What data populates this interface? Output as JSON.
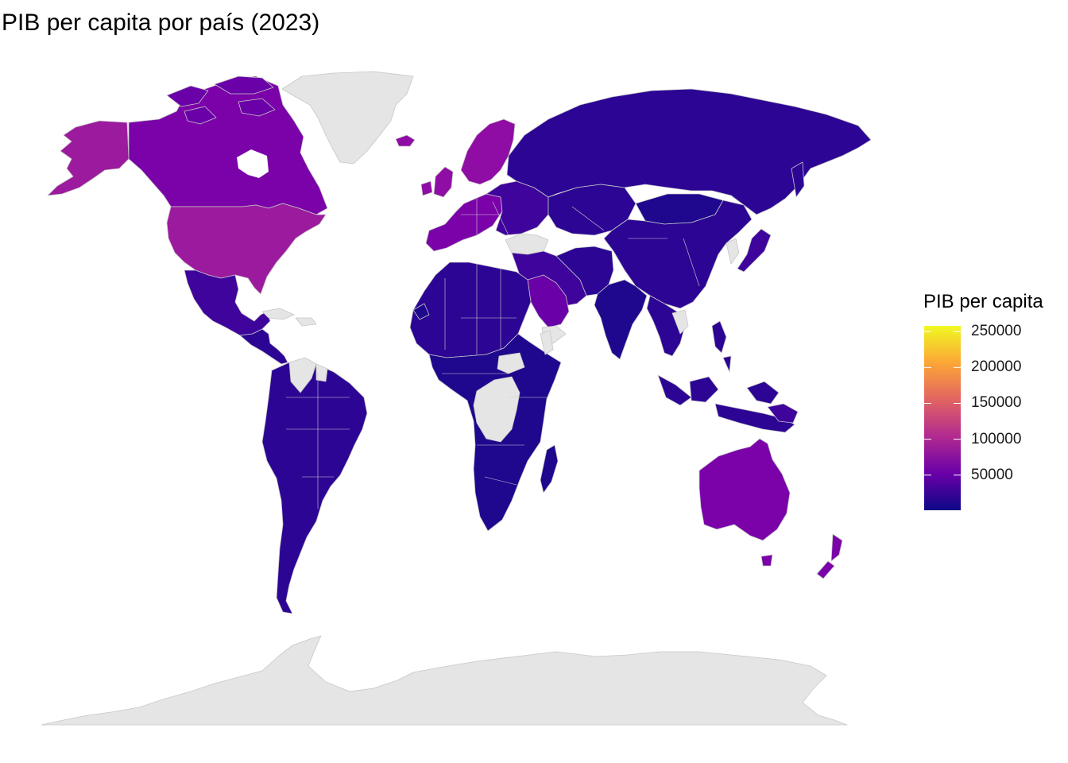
{
  "title": "PIB per capita por país (2023)",
  "legend": {
    "title": "PIB per capita",
    "min": 1000,
    "max": 258000,
    "ticks": [
      {
        "label": "250000",
        "value": 250000
      },
      {
        "label": "200000",
        "value": 200000
      },
      {
        "label": "150000",
        "value": 150000
      },
      {
        "label": "100000",
        "value": 100000
      },
      {
        "label": "50000",
        "value": 50000
      }
    ],
    "palette": [
      "#0d0887",
      "#6a00a8",
      "#b12a90",
      "#e16462",
      "#fca636",
      "#f0f921"
    ]
  },
  "colors": {
    "no_data": "#e5e5e5",
    "border": "#bdbdbd",
    "very_low": "#1f078e",
    "low": "#2c0594",
    "low_mid": "#3e049c",
    "mid": "#5c01a6",
    "upper_mid": "#7a02a8",
    "high": "#8f0da4",
    "very_high": "#b02a8f"
  }
}
